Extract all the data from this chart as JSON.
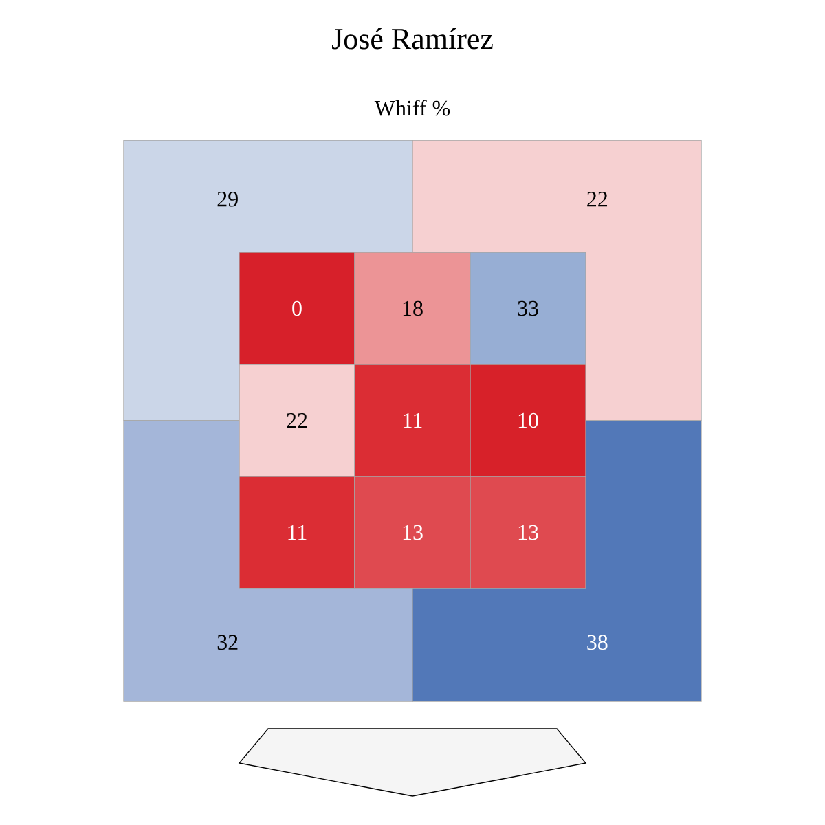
{
  "chart_data": [
    {
      "type": "heatmap",
      "title": "José Ramírez",
      "subtitle": "Whiff %",
      "categories": [
        null,
        null
      ],
      "y_categories": [
        null,
        null
      ],
      "cells": [
        [
          29,
          22
        ],
        [
          32,
          38
        ]
      ],
      "colors": [
        [
          "#cbd6e8",
          "#f6d0d1"
        ],
        [
          "#a4b6d9",
          "#5278b8"
        ]
      ],
      "data_labels": true
    },
    {
      "type": "heatmap",
      "categories": [
        null,
        null,
        null
      ],
      "y_categories": [
        null,
        null,
        null
      ],
      "cells": [
        [
          0,
          18,
          33
        ],
        [
          22,
          11,
          10
        ],
        [
          11,
          13,
          13
        ]
      ],
      "colors": [
        [
          "#d7202a",
          "#ec9496",
          "#97aed4"
        ],
        [
          "#f6d0d1",
          "#db2d34",
          "#d72129"
        ],
        [
          "#db2d34",
          "#df4a50",
          "#df4a50"
        ]
      ],
      "data_labels": true
    }
  ]
}
